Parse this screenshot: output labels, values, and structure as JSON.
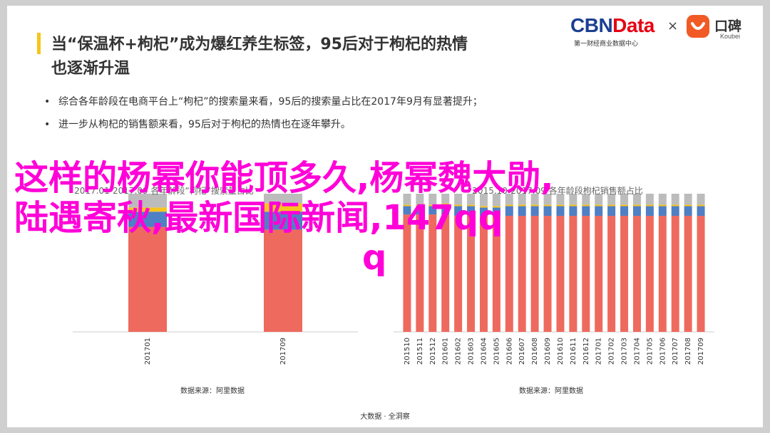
{
  "header": {
    "title_line1": "当“保温杯+枸杞”成为爆红养生标签，95后对于枸杞的热情",
    "title_line2": "也逐渐升温"
  },
  "logos": {
    "cbn_main": "CBN",
    "cbn_data": "Data",
    "cbn_sub": "第一财经商业数据中心",
    "times": "×",
    "koubei_name": "口碑",
    "koubei_sub": "Koubei"
  },
  "bullets": [
    "综合各年龄段在电商平台上“枸杞”的搜索量来看，95后的搜索量占比在2017年9月有显著提升；",
    "进一步从枸杞的销售额来看，95后对于枸杞的热情也在逐年攀升。"
  ],
  "chart_titles": {
    "left": "2017.01-2017.09 各年龄段“枸杞”搜索量占比",
    "right": "2015.10-2017.09 各年龄段枸杞销售额占比"
  },
  "sources": {
    "left": "数据来源：阿里数据",
    "right": "数据来源：阿里数据"
  },
  "footer": "大数据 · 全洞察",
  "overlay": {
    "line1": "这样的杨幂你能顶多久,杨幂魏大勋,",
    "line2": "陆遇寄秋,最新国际新闻,147qq",
    "line3": "q"
  },
  "colors": {
    "red": "#ee6a5e",
    "blue": "#4f7fc4",
    "yellow": "#f7c51e",
    "grey": "#bcbcbc"
  },
  "chart_data": [
    {
      "type": "bar",
      "stacked": true,
      "categories": [
        "201701",
        "201709"
      ],
      "series": [
        {
          "values": [
            76,
            74
          ]
        },
        {
          "values": [
            11,
            13
          ]
        },
        {
          "values": [
            3,
            6
          ]
        },
        {
          "values": [
            10,
            7
          ]
        }
      ],
      "ylim": [
        0,
        100
      ]
    },
    {
      "type": "bar",
      "stacked": true,
      "categories": [
        "201510",
        "201511",
        "201512",
        "201601",
        "201602",
        "201603",
        "201604",
        "201605",
        "201606",
        "201607",
        "201608",
        "201609",
        "201610",
        "201611",
        "201612",
        "201701",
        "201702",
        "201703",
        "201704",
        "201705",
        "201706",
        "201707",
        "201708",
        "201709"
      ],
      "series": [
        {
          "values": [
            85,
            85,
            85,
            85,
            84,
            85,
            84,
            84,
            84,
            84,
            84,
            84,
            84,
            84,
            84,
            84,
            84,
            84,
            84,
            84,
            84,
            84,
            84,
            84
          ]
        },
        {
          "values": [
            6,
            6,
            6,
            7,
            7,
            6,
            6,
            6,
            7,
            7,
            7,
            7,
            7,
            7,
            7,
            7,
            7,
            7,
            7,
            7,
            7,
            7,
            7,
            7
          ]
        },
        {
          "values": [
            1,
            1,
            1,
            1,
            1,
            1,
            1,
            1,
            1,
            1,
            1,
            1,
            1,
            1,
            1,
            1,
            1,
            1,
            1,
            1,
            1,
            1,
            1,
            1
          ]
        },
        {
          "values": [
            8,
            8,
            8,
            7,
            8,
            8,
            9,
            9,
            8,
            8,
            8,
            8,
            8,
            8,
            8,
            8,
            8,
            8,
            8,
            8,
            8,
            8,
            8,
            8
          ]
        }
      ],
      "ylim": [
        0,
        100
      ]
    }
  ]
}
